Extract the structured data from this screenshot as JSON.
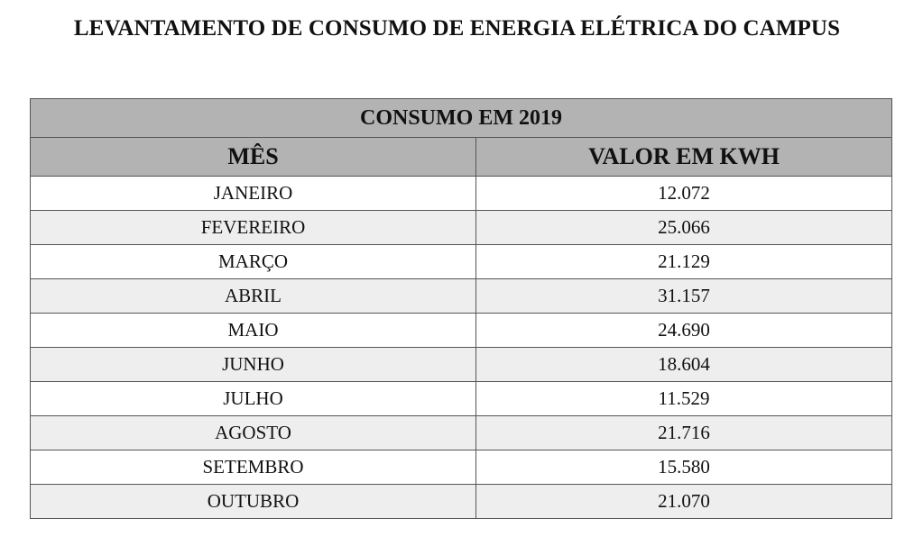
{
  "title": "LEVANTAMENTO DE CONSUMO DE ENERGIA ELÉTRICA DO CAMPUS",
  "table": {
    "caption": "CONSUMO EM 2019",
    "headers": [
      "MÊS",
      "VALOR EM KWH"
    ],
    "rows": [
      {
        "month": "JANEIRO",
        "value": "12.072"
      },
      {
        "month": "FEVEREIRO",
        "value": "25.066"
      },
      {
        "month": "MARÇO",
        "value": "21.129"
      },
      {
        "month": "ABRIL",
        "value": "31.157"
      },
      {
        "month": "MAIO",
        "value": "24.690"
      },
      {
        "month": "JUNHO",
        "value": "18.604"
      },
      {
        "month": "JULHO",
        "value": "11.529"
      },
      {
        "month": "AGOSTO",
        "value": "21.716"
      },
      {
        "month": "SETEMBRO",
        "value": "15.580"
      },
      {
        "month": "OUTUBRO",
        "value": "21.070"
      }
    ]
  }
}
